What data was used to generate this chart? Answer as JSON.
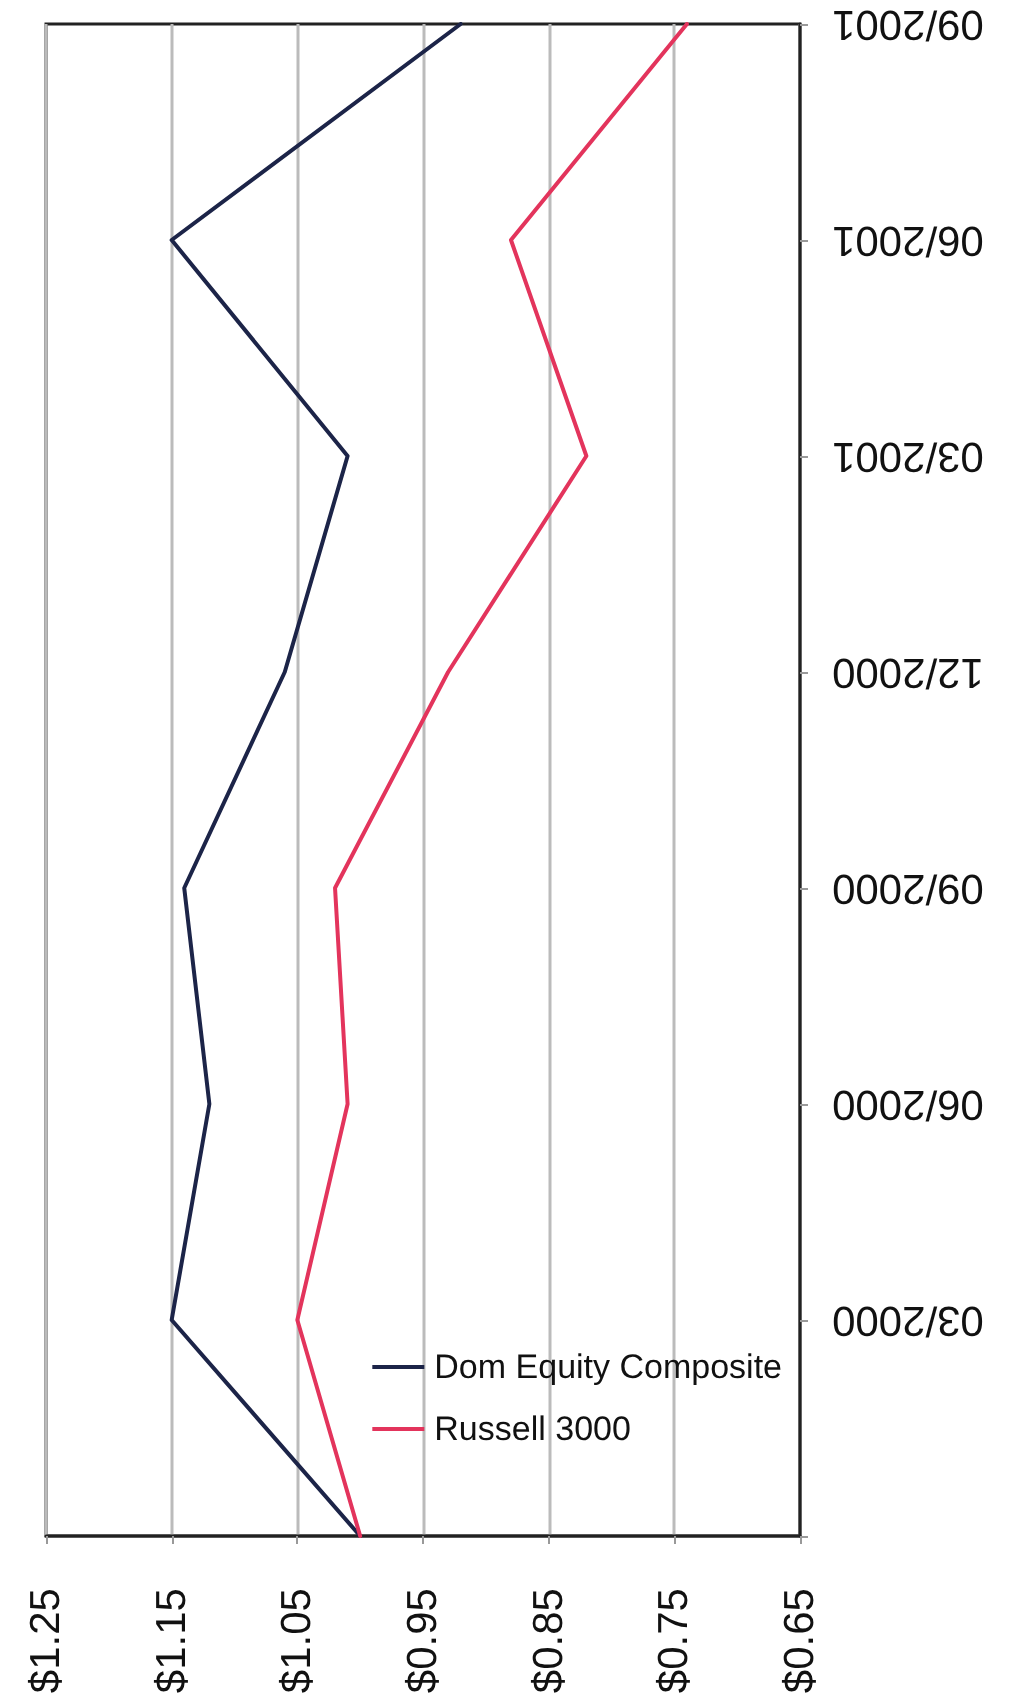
{
  "chart_data": {
    "type": "line",
    "orientation": "horizontal",
    "categories": [
      "09/2001",
      "06/2001",
      "03/2001",
      "12/2000",
      "09/2000",
      "06/2000",
      "03/2000",
      null
    ],
    "series": [
      {
        "name": "Dom Equity Composite",
        "color": "#1c2448",
        "values": [
          0.92,
          1.15,
          1.01,
          1.06,
          1.14,
          1.12,
          1.15,
          1.0
        ]
      },
      {
        "name": "Russell 3000",
        "color": "#e3345c",
        "values": [
          0.74,
          0.88,
          0.82,
          0.93,
          1.02,
          1.01,
          1.05,
          1.0
        ]
      }
    ],
    "xlim": [
      1.25,
      0.65
    ],
    "xticks": [
      {
        "value": 1.25,
        "label": "$1.25"
      },
      {
        "value": 1.15,
        "label": "$1.15"
      },
      {
        "value": 1.05,
        "label": "$1.05"
      },
      {
        "value": 0.95,
        "label": "$0.95"
      },
      {
        "value": 0.85,
        "label": "$0.85"
      },
      {
        "value": 0.75,
        "label": "$0.75"
      },
      {
        "value": 0.65,
        "label": "$0.65"
      }
    ],
    "grid": "x",
    "legend": "bottom right",
    "marker": "none"
  }
}
